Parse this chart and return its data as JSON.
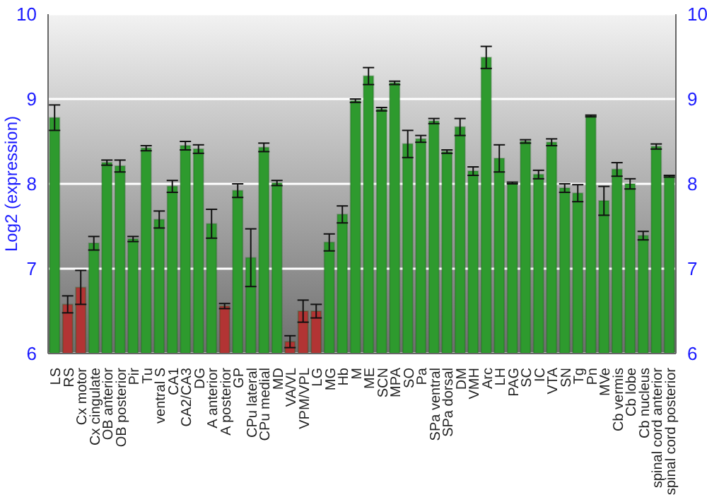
{
  "chart_data": {
    "type": "bar",
    "ylabel": "Log2 (expression)",
    "categories": [
      "LS",
      "RS",
      "Cx motor",
      "Cx cingulate",
      "OB anterior",
      "OB posterior",
      "Pir",
      "Tu",
      "ventral S",
      "CA1",
      "CA2/CA3",
      "DG",
      "A anterior",
      "A posterior",
      "GP",
      "CPu lateral",
      "CPu medial",
      "MD",
      "VA/VL",
      "VPM/VPL",
      "LG",
      "MG",
      "Hb",
      "M",
      "ME",
      "SCN",
      "MPA",
      "SO",
      "Pa",
      "SPa ventral",
      "SPa dorsal",
      "DM",
      "VMH",
      "Arc",
      "LH",
      "PAG",
      "SC",
      "IC",
      "VTA",
      "SN",
      "Tg",
      "Pn",
      "MVe",
      "Cb vermis",
      "Cb lobe",
      "Cb nucleus",
      "spinal cord anterior",
      "spinal cord posterior"
    ],
    "values": [
      8.78,
      6.58,
      6.78,
      7.3,
      8.25,
      8.21,
      7.35,
      8.42,
      7.58,
      7.97,
      8.45,
      8.41,
      7.53,
      6.56,
      7.92,
      7.13,
      8.43,
      8.01,
      6.14,
      6.5,
      6.5,
      7.31,
      7.64,
      8.98,
      9.27,
      8.88,
      9.19,
      8.47,
      8.53,
      8.74,
      8.38,
      8.67,
      8.15,
      9.49,
      8.3,
      8.01,
      8.5,
      8.11,
      8.49,
      7.95,
      7.89,
      8.8,
      7.8,
      8.17,
      8.0,
      7.39,
      8.44,
      8.09
    ],
    "errors": [
      0.15,
      0.1,
      0.2,
      0.08,
      0.03,
      0.07,
      0.03,
      0.03,
      0.1,
      0.07,
      0.05,
      0.05,
      0.17,
      0.03,
      0.08,
      0.34,
      0.05,
      0.03,
      0.07,
      0.13,
      0.08,
      0.1,
      0.1,
      0.02,
      0.1,
      0.02,
      0.02,
      0.16,
      0.04,
      0.03,
      0.02,
      0.1,
      0.05,
      0.13,
      0.16,
      0.01,
      0.02,
      0.05,
      0.04,
      0.05,
      0.1,
      0.01,
      0.17,
      0.08,
      0.06,
      0.05,
      0.03,
      0.01
    ],
    "colors": [
      "#2e9a2e",
      "#b23434",
      "#b23434",
      "#2e9a2e",
      "#2e9a2e",
      "#2e9a2e",
      "#2e9a2e",
      "#2e9a2e",
      "#2e9a2e",
      "#2e9a2e",
      "#2e9a2e",
      "#2e9a2e",
      "#2e9a2e",
      "#b23434",
      "#2e9a2e",
      "#2e9a2e",
      "#2e9a2e",
      "#2e9a2e",
      "#b23434",
      "#b23434",
      "#b23434",
      "#2e9a2e",
      "#2e9a2e",
      "#2e9a2e",
      "#2e9a2e",
      "#2e9a2e",
      "#2e9a2e",
      "#2e9a2e",
      "#2e9a2e",
      "#2e9a2e",
      "#2e9a2e",
      "#2e9a2e",
      "#2e9a2e",
      "#2e9a2e",
      "#2e9a2e",
      "#2e9a2e",
      "#2e9a2e",
      "#2e9a2e",
      "#2e9a2e",
      "#2e9a2e",
      "#2e9a2e",
      "#2e9a2e",
      "#2e9a2e",
      "#2e9a2e",
      "#2e9a2e",
      "#2e9a2e",
      "#2e9a2e",
      "#2e9a2e"
    ],
    "ylim": [
      6,
      10
    ],
    "yticks": [
      6,
      7,
      8,
      9,
      10
    ],
    "y2lim": [
      6,
      10
    ],
    "y2ticks": [
      6,
      7,
      8,
      9,
      10
    ],
    "grid": "y",
    "legend": false
  }
}
